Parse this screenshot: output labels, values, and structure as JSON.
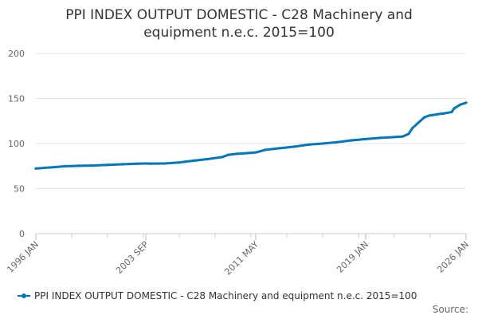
{
  "chart_data": {
    "type": "line",
    "title": "PPI INDEX OUTPUT DOMESTIC - C28 Machinery and equipment n.e.c. 2015=100",
    "title_lines": [
      "PPI INDEX OUTPUT DOMESTIC - C28 Machinery and",
      "equipment n.e.c. 2015=100"
    ],
    "xlabel": "",
    "ylabel": "",
    "ylim": [
      0,
      200
    ],
    "yticks": [
      "0",
      "50",
      "100",
      "150",
      "200"
    ],
    "xlim": [
      "1996-01",
      "2026-01"
    ],
    "xticks": [
      "1996 JAN",
      "2003 SEP",
      "2011 MAY",
      "2019 JAN",
      "2026 JAN"
    ],
    "grid": true,
    "legend_position": "bottom",
    "color": "#0077bb",
    "series": [
      {
        "name": "PPI INDEX OUTPUT DOMESTIC - C28 Machinery and equipment n.e.c. 2015=100",
        "points": [
          [
            "1996-01",
            72.3
          ],
          [
            "1997-01",
            73.5
          ],
          [
            "1998-01",
            74.8
          ],
          [
            "1999-01",
            75.3
          ],
          [
            "2000-01",
            75.6
          ],
          [
            "2001-01",
            76.3
          ],
          [
            "2002-01",
            77.0
          ],
          [
            "2003-01",
            77.6
          ],
          [
            "2003-09",
            77.9
          ],
          [
            "2004-01",
            77.7
          ],
          [
            "2005-01",
            77.9
          ],
          [
            "2006-01",
            79.0
          ],
          [
            "2007-01",
            81.0
          ],
          [
            "2008-01",
            82.8
          ],
          [
            "2009-01",
            85.0
          ],
          [
            "2009-06",
            87.5
          ],
          [
            "2010-01",
            88.6
          ],
          [
            "2010-06",
            89.0
          ],
          [
            "2011-01",
            89.7
          ],
          [
            "2011-05",
            90.1
          ],
          [
            "2012-01",
            93.0
          ],
          [
            "2013-01",
            94.8
          ],
          [
            "2014-01",
            96.5
          ],
          [
            "2015-01",
            98.8
          ],
          [
            "2016-01",
            100.0
          ],
          [
            "2017-01",
            101.5
          ],
          [
            "2018-01",
            103.5
          ],
          [
            "2019-01",
            105.0
          ],
          [
            "2020-01",
            106.3
          ],
          [
            "2021-01",
            107.2
          ],
          [
            "2021-08",
            107.8
          ],
          [
            "2022-01",
            110.8
          ],
          [
            "2022-04",
            117.0
          ],
          [
            "2022-09",
            123.0
          ],
          [
            "2023-02",
            129.0
          ],
          [
            "2023-06",
            131.0
          ],
          [
            "2024-01",
            132.5
          ],
          [
            "2024-06",
            133.3
          ],
          [
            "2025-01",
            135.0
          ],
          [
            "2025-03",
            139.0
          ],
          [
            "2025-08",
            143.0
          ],
          [
            "2026-01",
            145.3
          ]
        ]
      }
    ],
    "source_label": "Source:"
  }
}
